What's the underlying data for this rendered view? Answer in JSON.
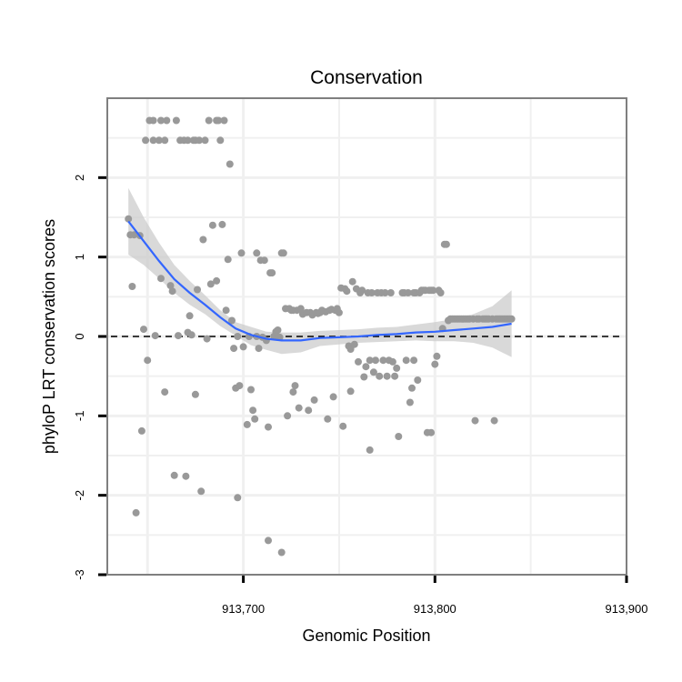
{
  "chart_data": {
    "type": "scatter",
    "title": "Conservation",
    "xlabel": "Genomic Position",
    "ylabel": "phyloP LRT conservation scores",
    "xlim": [
      913629,
      913900
    ],
    "ylim": [
      -3,
      3
    ],
    "x_ticks": [
      {
        "value": 913700,
        "label": "913,700"
      },
      {
        "value": 913800,
        "label": "913,800"
      },
      {
        "value": 913900,
        "label": "913,900"
      }
    ],
    "y_ticks": [
      {
        "value": -3,
        "label": "-3"
      },
      {
        "value": -2,
        "label": "-2"
      },
      {
        "value": -1,
        "label": "-1"
      },
      {
        "value": 0,
        "label": "0"
      },
      {
        "value": 1,
        "label": "1"
      },
      {
        "value": 2,
        "label": "2"
      }
    ],
    "grid": true,
    "reference_line": {
      "y": 0,
      "style": "dashed",
      "color": "#000000"
    },
    "points_color": "#999999",
    "smooth_color": "#3366ff",
    "ribbon_color": "#cccccc",
    "points": [
      [
        913640,
        1.48
      ],
      [
        913641,
        1.28
      ],
      [
        913642,
        0.63
      ],
      [
        913643,
        1.28
      ],
      [
        913644,
        -2.22
      ],
      [
        913646,
        1.27
      ],
      [
        913647,
        -1.19
      ],
      [
        913648,
        0.09
      ],
      [
        913649,
        2.47
      ],
      [
        913650,
        -0.3
      ],
      [
        913651,
        2.72
      ],
      [
        913653,
        2.72
      ],
      [
        913653,
        2.47
      ],
      [
        913654,
        0.01
      ],
      [
        913656,
        2.47
      ],
      [
        913657,
        0.73
      ],
      [
        913657,
        2.72
      ],
      [
        913659,
        2.47
      ],
      [
        913659,
        -0.7
      ],
      [
        913660,
        2.72
      ],
      [
        913662,
        0.64
      ],
      [
        913663,
        0.57
      ],
      [
        913664,
        -1.75
      ],
      [
        913665,
        2.72
      ],
      [
        913666,
        0.01
      ],
      [
        913667,
        2.47
      ],
      [
        913669,
        2.47
      ],
      [
        913670,
        -1.76
      ],
      [
        913671,
        0.05
      ],
      [
        913671,
        2.47
      ],
      [
        913672,
        0.26
      ],
      [
        913673,
        0.02
      ],
      [
        913674,
        2.47
      ],
      [
        913675,
        -0.73
      ],
      [
        913675,
        2.47
      ],
      [
        913676,
        0.59
      ],
      [
        913677,
        2.47
      ],
      [
        913678,
        -1.95
      ],
      [
        913679,
        1.22
      ],
      [
        913680,
        2.47
      ],
      [
        913681,
        -0.03
      ],
      [
        913682,
        2.72
      ],
      [
        913683,
        0.66
      ],
      [
        913684,
        1.4
      ],
      [
        913686,
        2.72
      ],
      [
        913686,
        0.7
      ],
      [
        913687,
        2.72
      ],
      [
        913688,
        2.47
      ],
      [
        913689,
        1.41
      ],
      [
        913690,
        2.72
      ],
      [
        913691,
        0.33
      ],
      [
        913692,
        0.97
      ],
      [
        913693,
        2.17
      ],
      [
        913694,
        0.2
      ],
      [
        913695,
        -0.15
      ],
      [
        913696,
        -0.65
      ],
      [
        913697,
        0.0
      ],
      [
        913697,
        -2.03
      ],
      [
        913698,
        -0.62
      ],
      [
        913699,
        1.05
      ],
      [
        913700,
        -0.13
      ],
      [
        913702,
        -1.11
      ],
      [
        913703,
        0.0
      ],
      [
        913704,
        -0.67
      ],
      [
        913705,
        -0.93
      ],
      [
        913706,
        -1.04
      ],
      [
        913707,
        1.05
      ],
      [
        913707,
        0.0
      ],
      [
        913708,
        -0.15
      ],
      [
        913709,
        0.96
      ],
      [
        913710,
        -0.01
      ],
      [
        913711,
        0.96
      ],
      [
        913712,
        -0.05
      ],
      [
        913713,
        -1.14
      ],
      [
        913713,
        -2.57
      ],
      [
        913714,
        0.8
      ],
      [
        913715,
        0.8
      ],
      [
        913716,
        0.0
      ],
      [
        913717,
        0.06
      ],
      [
        913718,
        0.08
      ],
      [
        913719,
        -0.01
      ],
      [
        913720,
        1.05
      ],
      [
        913720,
        -2.72
      ],
      [
        913721,
        1.05
      ],
      [
        913722,
        0.35
      ],
      [
        913723,
        -1.0
      ],
      [
        913724,
        0.35
      ],
      [
        913725,
        0.33
      ],
      [
        913726,
        -0.7
      ],
      [
        913726,
        0.33
      ],
      [
        913727,
        -0.62
      ],
      [
        913728,
        0.33
      ],
      [
        913729,
        -0.9
      ],
      [
        913730,
        0.35
      ],
      [
        913731,
        0.28
      ],
      [
        913733,
        0.3
      ],
      [
        913734,
        -0.93
      ],
      [
        913735,
        0.3
      ],
      [
        913736,
        0.27
      ],
      [
        913737,
        -0.8
      ],
      [
        913738,
        0.3
      ],
      [
        913739,
        0.29
      ],
      [
        913740,
        0.3
      ],
      [
        913741,
        0.33
      ],
      [
        913743,
        0.31
      ],
      [
        913744,
        -1.04
      ],
      [
        913745,
        0.33
      ],
      [
        913746,
        0.34
      ],
      [
        913747,
        -0.76
      ],
      [
        913748,
        0.33
      ],
      [
        913749,
        0.35
      ],
      [
        913750,
        0.3
      ],
      [
        913751,
        0.61
      ],
      [
        913752,
        -1.13
      ],
      [
        913753,
        0.6
      ],
      [
        913754,
        0.57
      ],
      [
        913755,
        -0.12
      ],
      [
        913756,
        -0.16
      ],
      [
        913756,
        -0.69
      ],
      [
        913757,
        0.69
      ],
      [
        913758,
        -0.1
      ],
      [
        913759,
        0.6
      ],
      [
        913760,
        -0.32
      ],
      [
        913761,
        0.55
      ],
      [
        913762,
        0.58
      ],
      [
        913763,
        -0.51
      ],
      [
        913764,
        -0.38
      ],
      [
        913765,
        0.55
      ],
      [
        913766,
        -0.3
      ],
      [
        913766,
        -1.43
      ],
      [
        913767,
        0.55
      ],
      [
        913768,
        -0.45
      ],
      [
        913769,
        -0.3
      ],
      [
        913770,
        0.55
      ],
      [
        913771,
        -0.5
      ],
      [
        913772,
        0.55
      ],
      [
        913773,
        -0.3
      ],
      [
        913774,
        0.55
      ],
      [
        913775,
        -0.5
      ],
      [
        913776,
        -0.3
      ],
      [
        913777,
        0.55
      ],
      [
        913778,
        -0.32
      ],
      [
        913779,
        -0.5
      ],
      [
        913780,
        -0.4
      ],
      [
        913781,
        -1.26
      ],
      [
        913783,
        0.55
      ],
      [
        913784,
        0.55
      ],
      [
        913785,
        -0.3
      ],
      [
        913786,
        0.55
      ],
      [
        913787,
        -0.83
      ],
      [
        913788,
        -0.65
      ],
      [
        913789,
        -0.3
      ],
      [
        913789,
        0.55
      ],
      [
        913790,
        0.55
      ],
      [
        913791,
        -0.55
      ],
      [
        913792,
        0.55
      ],
      [
        913793,
        0.58
      ],
      [
        913794,
        0.58
      ],
      [
        913795,
        0.58
      ],
      [
        913796,
        -1.21
      ],
      [
        913797,
        0.58
      ],
      [
        913798,
        0.58
      ],
      [
        913798,
        -1.21
      ],
      [
        913799,
        0.58
      ],
      [
        913800,
        -0.35
      ],
      [
        913801,
        -0.25
      ],
      [
        913802,
        0.58
      ],
      [
        913803,
        0.55
      ],
      [
        913804,
        0.1
      ],
      [
        913805,
        1.16
      ],
      [
        913806,
        1.16
      ],
      [
        913807,
        0.2
      ],
      [
        913808,
        0.22
      ],
      [
        913809,
        0.22
      ],
      [
        913810,
        0.22
      ],
      [
        913811,
        0.22
      ],
      [
        913812,
        0.22
      ],
      [
        913813,
        0.22
      ],
      [
        913814,
        0.22
      ],
      [
        913815,
        0.22
      ],
      [
        913816,
        0.22
      ],
      [
        913817,
        0.22
      ],
      [
        913818,
        0.22
      ],
      [
        913820,
        0.22
      ],
      [
        913821,
        -1.06
      ],
      [
        913822,
        0.22
      ],
      [
        913823,
        0.22
      ],
      [
        913825,
        0.22
      ],
      [
        913826,
        0.22
      ],
      [
        913827,
        0.22
      ],
      [
        913828,
        0.22
      ],
      [
        913830,
        0.22
      ],
      [
        913831,
        -1.06
      ],
      [
        913832,
        0.22
      ],
      [
        913833,
        0.22
      ],
      [
        913834,
        0.22
      ],
      [
        913835,
        0.22
      ],
      [
        913836,
        0.22
      ],
      [
        913837,
        0.22
      ],
      [
        913838,
        0.22
      ],
      [
        913839,
        0.22
      ],
      [
        913840,
        0.22
      ]
    ],
    "smooth_line": [
      [
        913640,
        1.45
      ],
      [
        913648,
        1.2
      ],
      [
        913656,
        0.95
      ],
      [
        913664,
        0.72
      ],
      [
        913672,
        0.55
      ],
      [
        913680,
        0.4
      ],
      [
        913688,
        0.24
      ],
      [
        913696,
        0.1
      ],
      [
        913704,
        0.02
      ],
      [
        913712,
        -0.03
      ],
      [
        913720,
        -0.05
      ],
      [
        913730,
        -0.05
      ],
      [
        913740,
        -0.02
      ],
      [
        913750,
        -0.01
      ],
      [
        913760,
        0.0
      ],
      [
        913770,
        0.02
      ],
      [
        913780,
        0.03
      ],
      [
        913790,
        0.05
      ],
      [
        913800,
        0.06
      ],
      [
        913810,
        0.08
      ],
      [
        913820,
        0.1
      ],
      [
        913830,
        0.12
      ],
      [
        913840,
        0.16
      ]
    ],
    "ribbon_upper": [
      [
        913640,
        1.87
      ],
      [
        913648,
        1.5
      ],
      [
        913656,
        1.18
      ],
      [
        913664,
        0.9
      ],
      [
        913672,
        0.7
      ],
      [
        913680,
        0.52
      ],
      [
        913688,
        0.33
      ],
      [
        913696,
        0.18
      ],
      [
        913704,
        0.12
      ],
      [
        913712,
        0.06
      ],
      [
        913720,
        0.05
      ],
      [
        913730,
        0.05
      ],
      [
        913740,
        0.07
      ],
      [
        913750,
        0.08
      ],
      [
        913760,
        0.09
      ],
      [
        913770,
        0.11
      ],
      [
        913780,
        0.12
      ],
      [
        913790,
        0.15
      ],
      [
        913800,
        0.18
      ],
      [
        913810,
        0.22
      ],
      [
        913820,
        0.28
      ],
      [
        913830,
        0.38
      ],
      [
        913840,
        0.58
      ]
    ],
    "ribbon_lower": [
      [
        913640,
        1.03
      ],
      [
        913648,
        0.9
      ],
      [
        913656,
        0.73
      ],
      [
        913664,
        0.55
      ],
      [
        913672,
        0.4
      ],
      [
        913680,
        0.28
      ],
      [
        913688,
        0.13
      ],
      [
        913696,
        0.01
      ],
      [
        913704,
        -0.11
      ],
      [
        913712,
        -0.17
      ],
      [
        913720,
        -0.22
      ],
      [
        913730,
        -0.2
      ],
      [
        913740,
        -0.12
      ],
      [
        913750,
        -0.1
      ],
      [
        913760,
        -0.08
      ],
      [
        913770,
        -0.07
      ],
      [
        913780,
        -0.06
      ],
      [
        913790,
        -0.05
      ],
      [
        913800,
        -0.06
      ],
      [
        913810,
        -0.06
      ],
      [
        913820,
        -0.08
      ],
      [
        913830,
        -0.14
      ],
      [
        913840,
        -0.26
      ]
    ]
  }
}
